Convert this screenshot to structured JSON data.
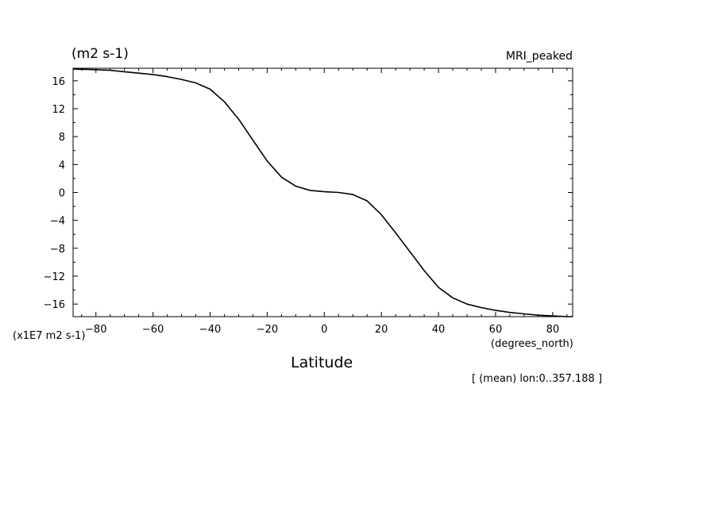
{
  "chart_data": {
    "type": "line",
    "title": "MRI_peaked",
    "units_label": "(m2 s-1)",
    "scale_label": "(x1E7 m2 s-1)",
    "xlabel": "Latitude",
    "xunits": "(degrees_north)",
    "footnote": "[ (mean) lon:0..357.188 ]",
    "xlim": [
      -88,
      87
    ],
    "ylim": [
      -17.8,
      17.8
    ],
    "xticks": [
      -80,
      -60,
      -40,
      -20,
      0,
      20,
      40,
      60,
      80
    ],
    "yticks": [
      16,
      12,
      8,
      4,
      0,
      -4,
      -8,
      -12,
      -16
    ],
    "grid": false,
    "series": [
      {
        "color": "#000000",
        "x": [
          -88,
          -80,
          -75,
          -70,
          -65,
          -60,
          -55,
          -50,
          -45,
          -40,
          -35,
          -30,
          -25,
          -20,
          -15,
          -10,
          -5,
          0,
          5,
          10,
          15,
          20,
          25,
          30,
          35,
          40,
          45,
          50,
          55,
          60,
          65,
          70,
          75,
          80,
          85,
          87
        ],
        "y": [
          17.7,
          17.6,
          17.5,
          17.3,
          17.1,
          16.9,
          16.6,
          16.2,
          15.7,
          14.8,
          13.0,
          10.5,
          7.5,
          4.5,
          2.2,
          0.9,
          0.3,
          0.1,
          0.0,
          -0.3,
          -1.2,
          -3.2,
          -5.8,
          -8.5,
          -11.2,
          -13.6,
          -15.1,
          -16.0,
          -16.5,
          -16.9,
          -17.2,
          -17.4,
          -17.6,
          -17.7,
          -17.8,
          -17.8
        ]
      }
    ]
  }
}
